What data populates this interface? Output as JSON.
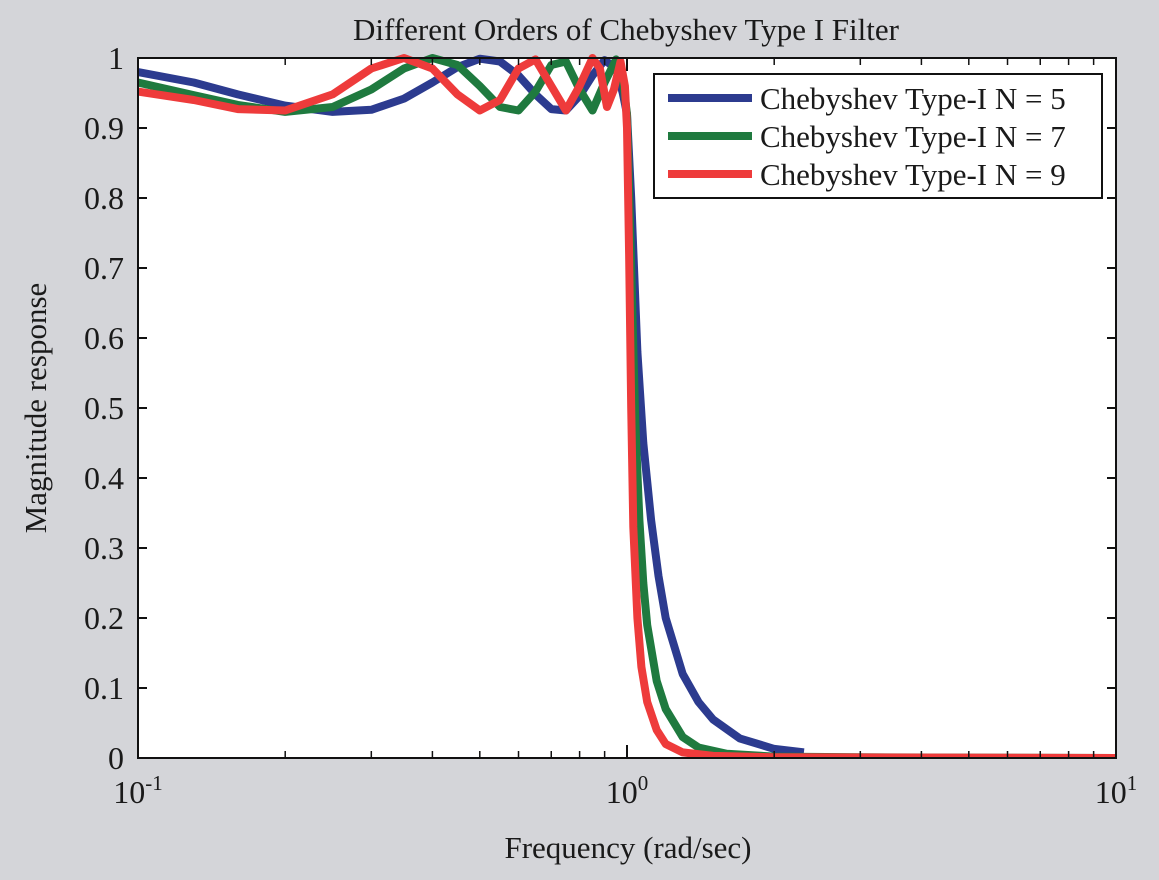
{
  "chart_data": {
    "type": "line",
    "title": "Different Orders of Chebyshev Type I Filter",
    "xlabel": "Frequency (rad/sec)",
    "ylabel": "Magnitude response",
    "x_scale": "log",
    "xlim": [
      0.1,
      10
    ],
    "ylim": [
      0,
      1
    ],
    "x_ticks": [
      {
        "value": 0.1,
        "base": "10",
        "exp": "-1"
      },
      {
        "value": 1,
        "base": "10",
        "exp": "0"
      },
      {
        "value": 10,
        "base": "10",
        "exp": "1"
      }
    ],
    "y_ticks": [
      {
        "value": 0,
        "label": "0"
      },
      {
        "value": 0.1,
        "label": "0.1"
      },
      {
        "value": 0.2,
        "label": "0.2"
      },
      {
        "value": 0.3,
        "label": "0.3"
      },
      {
        "value": 0.4,
        "label": "0.4"
      },
      {
        "value": 0.5,
        "label": "0.5"
      },
      {
        "value": 0.6,
        "label": "0.6"
      },
      {
        "value": 0.7,
        "label": "0.7"
      },
      {
        "value": 0.8,
        "label": "0.8"
      },
      {
        "value": 0.9,
        "label": "0.9"
      },
      {
        "value": 1,
        "label": "1"
      }
    ],
    "grid": false,
    "legend_position": "top-right",
    "background": "#d4d5d9",
    "plot_background": "#ffffff",
    "series": [
      {
        "name": "Chebyshev Type-I N = 5",
        "color": "#2c3b8f",
        "order": 5,
        "x_max": 2.3,
        "x": [
          0.1,
          0.13,
          0.16,
          0.2,
          0.25,
          0.3,
          0.35,
          0.4,
          0.45,
          0.5,
          0.55,
          0.6,
          0.65,
          0.7,
          0.75,
          0.8,
          0.85,
          0.9,
          0.95,
          0.98,
          1.0,
          1.02,
          1.05,
          1.08,
          1.12,
          1.16,
          1.2,
          1.3,
          1.4,
          1.5,
          1.7,
          2.0,
          2.3
        ],
        "y": [
          0.98,
          0.965,
          0.948,
          0.932,
          0.923,
          0.926,
          0.942,
          0.965,
          0.987,
          0.999,
          0.995,
          0.975,
          0.948,
          0.927,
          0.925,
          0.946,
          0.975,
          0.997,
          0.985,
          0.95,
          0.92,
          0.8,
          0.58,
          0.45,
          0.34,
          0.26,
          0.2,
          0.12,
          0.08,
          0.055,
          0.028,
          0.013,
          0.008
        ]
      },
      {
        "name": "Chebyshev Type-I N = 7",
        "color": "#1f7a3f",
        "order": 7,
        "x_max": 10,
        "x": [
          0.1,
          0.13,
          0.16,
          0.2,
          0.25,
          0.3,
          0.35,
          0.4,
          0.45,
          0.5,
          0.55,
          0.6,
          0.65,
          0.7,
          0.75,
          0.8,
          0.85,
          0.9,
          0.95,
          0.98,
          1.0,
          1.02,
          1.04,
          1.06,
          1.08,
          1.1,
          1.15,
          1.2,
          1.3,
          1.4,
          1.6,
          2.0,
          3.0,
          10.0
        ],
        "y": [
          0.965,
          0.947,
          0.933,
          0.923,
          0.93,
          0.955,
          0.985,
          1.0,
          0.99,
          0.96,
          0.93,
          0.925,
          0.952,
          0.99,
          0.995,
          0.955,
          0.925,
          0.965,
          0.998,
          0.97,
          0.92,
          0.7,
          0.48,
          0.34,
          0.25,
          0.19,
          0.11,
          0.07,
          0.03,
          0.015,
          0.006,
          0.002,
          0.001,
          0.0
        ]
      },
      {
        "name": "Chebyshev Type-I N = 9",
        "color": "#ee3b3b",
        "order": 9,
        "x_max": 10,
        "x": [
          0.1,
          0.13,
          0.16,
          0.2,
          0.25,
          0.3,
          0.35,
          0.4,
          0.45,
          0.5,
          0.55,
          0.6,
          0.65,
          0.7,
          0.75,
          0.8,
          0.85,
          0.88,
          0.91,
          0.94,
          0.97,
          0.99,
          1.0,
          1.01,
          1.02,
          1.03,
          1.05,
          1.07,
          1.1,
          1.15,
          1.2,
          1.3,
          1.5,
          2.0,
          10.0
        ],
        "y": [
          0.952,
          0.94,
          0.927,
          0.925,
          0.948,
          0.985,
          1.0,
          0.985,
          0.948,
          0.925,
          0.94,
          0.985,
          0.998,
          0.96,
          0.925,
          0.96,
          1.0,
          0.985,
          0.93,
          0.955,
          0.995,
          0.96,
          0.9,
          0.72,
          0.5,
          0.33,
          0.2,
          0.13,
          0.08,
          0.04,
          0.02,
          0.008,
          0.003,
          0.001,
          0.0
        ]
      }
    ]
  }
}
